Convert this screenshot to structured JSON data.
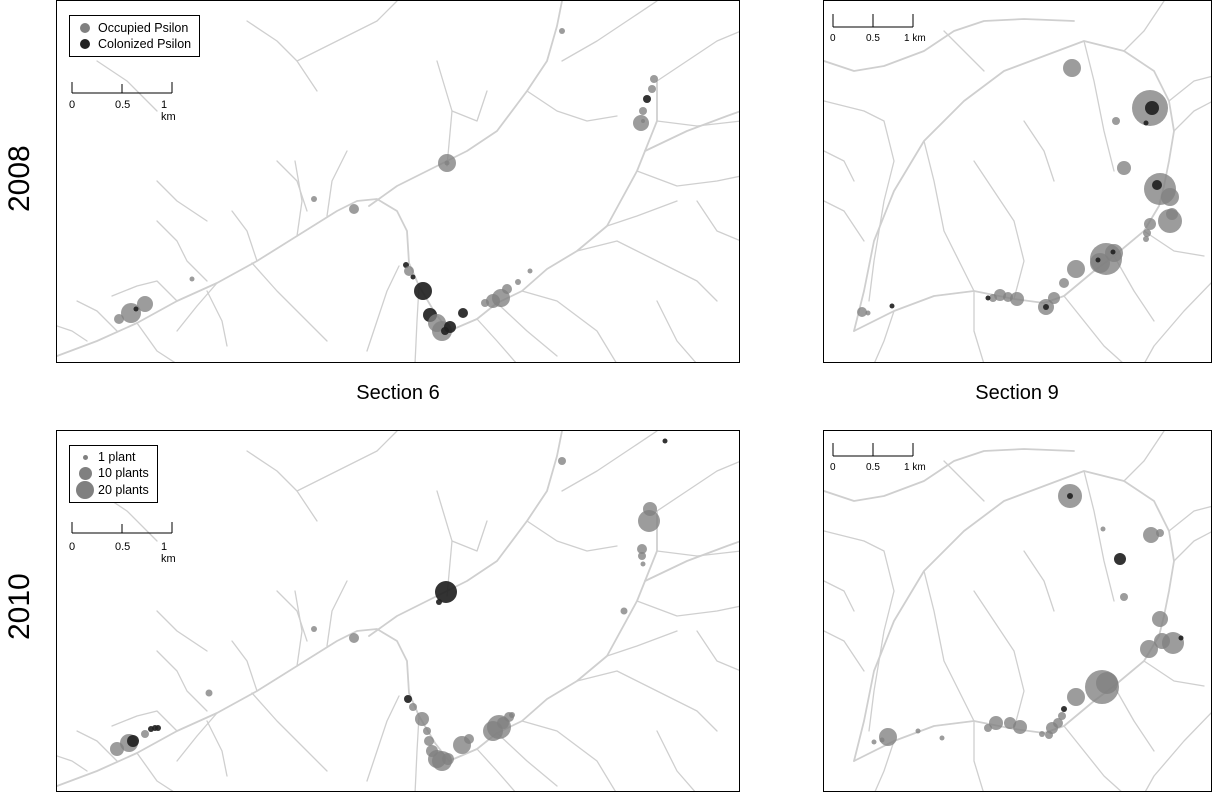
{
  "row_labels": {
    "top": "2008",
    "bottom": "2010"
  },
  "col_labels": {
    "left": "Section 6",
    "right": "Section 9"
  },
  "legend_presence": {
    "items": [
      {
        "label": "Occupied Psilon",
        "color": "#808080"
      },
      {
        "label": "Colonized Psilon",
        "color": "#222222"
      }
    ]
  },
  "legend_size": {
    "items": [
      {
        "label": "1 plant",
        "plants": 1
      },
      {
        "label": "10 plants",
        "plants": 10
      },
      {
        "label": "20 plants",
        "plants": 20
      }
    ]
  },
  "scale": {
    "ticks": [
      "0",
      "0.5",
      "1 km"
    ]
  },
  "colors": {
    "road": "#cfcfcf",
    "occupied": "#808080",
    "colonized": "#222222",
    "frame": "#000000"
  }
}
